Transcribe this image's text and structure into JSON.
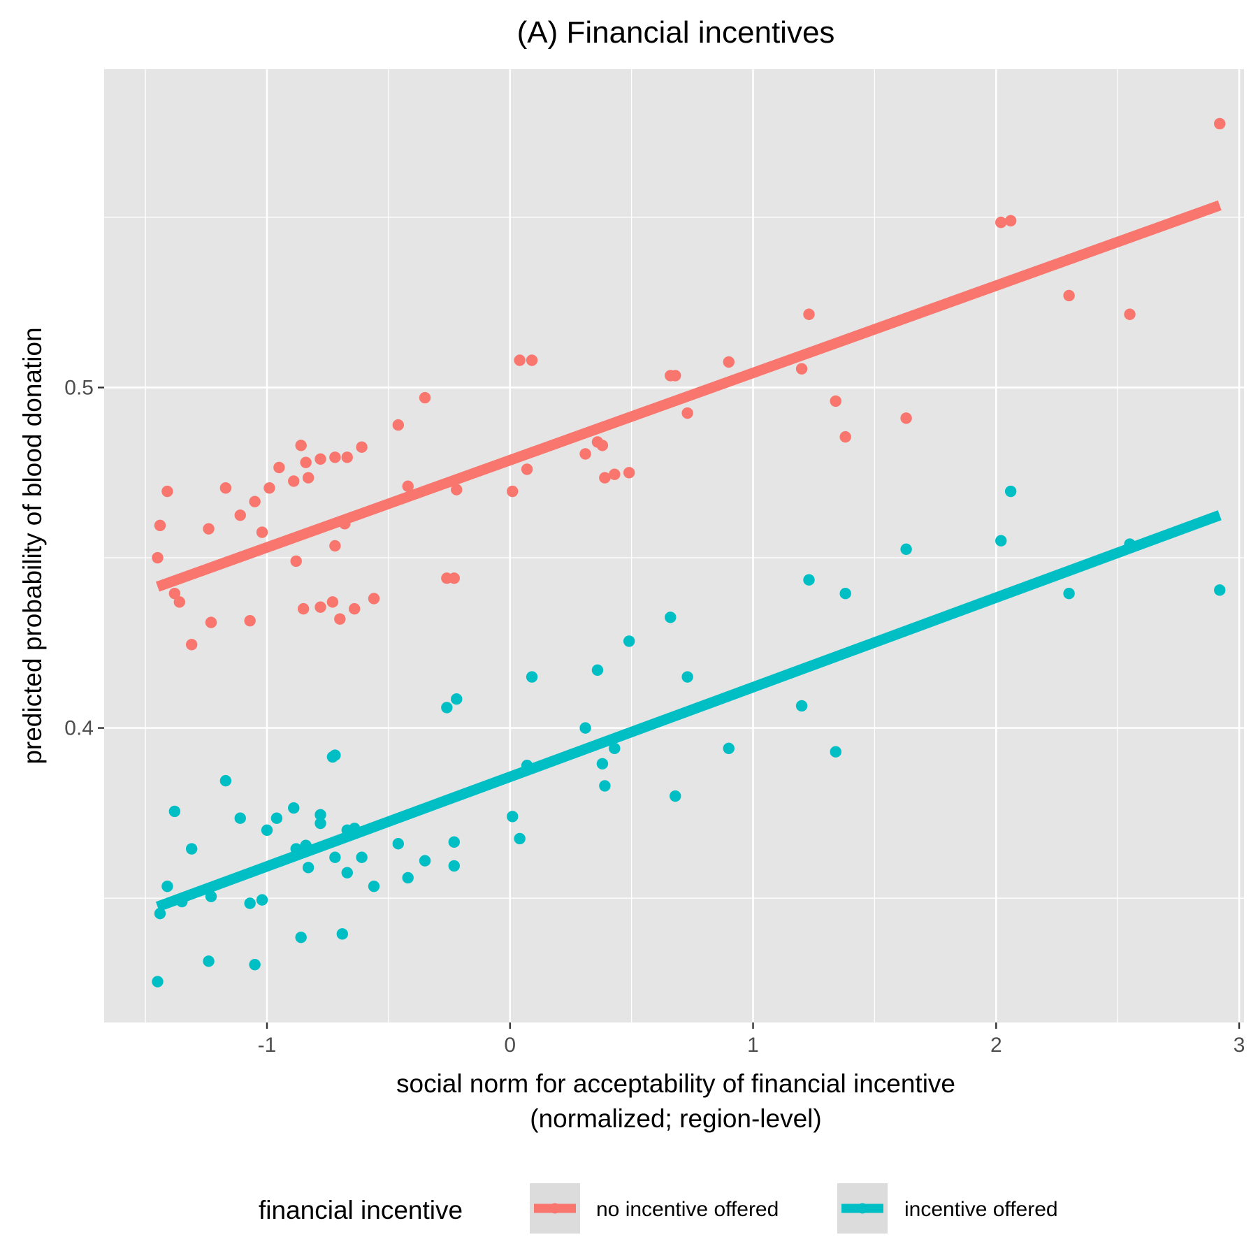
{
  "chart_data": {
    "type": "scatter",
    "title": "(A) Financial incentives",
    "xlabel_lines": [
      "social norm for acceptability of financial incentive",
      "(normalized; region-level)"
    ],
    "ylabel": "predicted probability of blood donation",
    "xlim": [
      -1.67,
      3.02
    ],
    "ylim": [
      0.3135,
      0.5935
    ],
    "x_ticks": [
      -1,
      0,
      1,
      2,
      3
    ],
    "x_tick_labels": [
      "-1",
      "0",
      "1",
      "2",
      "3"
    ],
    "y_ticks": [
      0.4,
      0.5
    ],
    "y_tick_labels": [
      "0.4",
      "0.5"
    ],
    "grid": true,
    "legend": {
      "title": "financial incentive",
      "position": "bottom",
      "entries": [
        "no incentive offered",
        "incentive offered"
      ]
    },
    "colors": {
      "panel_background": "#e5e5e5",
      "grid": "#ffffff",
      "no_incentive": "#f8766d",
      "incentive": "#00bfc4"
    },
    "series": [
      {
        "name": "no incentive offered",
        "color": "#f8766d",
        "fit_line": {
          "x": [
            -1.45,
            2.92
          ],
          "y": [
            0.4415,
            0.5535
          ]
        },
        "points": [
          [
            -1.45,
            0.45
          ],
          [
            -1.44,
            0.4595
          ],
          [
            -1.41,
            0.4695
          ],
          [
            -1.38,
            0.4395
          ],
          [
            -1.36,
            0.437
          ],
          [
            -1.31,
            0.4245
          ],
          [
            -1.24,
            0.4585
          ],
          [
            -1.23,
            0.431
          ],
          [
            -1.17,
            0.4705
          ],
          [
            -1.11,
            0.4625
          ],
          [
            -1.07,
            0.4315
          ],
          [
            -1.05,
            0.4665
          ],
          [
            -1.02,
            0.4575
          ],
          [
            -0.99,
            0.4705
          ],
          [
            -0.95,
            0.4765
          ],
          [
            -0.89,
            0.4725
          ],
          [
            -0.88,
            0.449
          ],
          [
            -0.86,
            0.483
          ],
          [
            -0.85,
            0.435
          ],
          [
            -0.84,
            0.478
          ],
          [
            -0.83,
            0.4735
          ],
          [
            -0.78,
            0.4355
          ],
          [
            -0.78,
            0.479
          ],
          [
            -0.73,
            0.437
          ],
          [
            -0.72,
            0.4795
          ],
          [
            -0.72,
            0.4535
          ],
          [
            -0.7,
            0.432
          ],
          [
            -0.68,
            0.46
          ],
          [
            -0.67,
            0.4795
          ],
          [
            -0.64,
            0.435
          ],
          [
            -0.61,
            0.4825
          ],
          [
            -0.56,
            0.438
          ],
          [
            -0.46,
            0.489
          ],
          [
            -0.42,
            0.471
          ],
          [
            -0.35,
            0.497
          ],
          [
            -0.26,
            0.444
          ],
          [
            -0.23,
            0.444
          ],
          [
            -0.22,
            0.47
          ],
          [
            0.01,
            0.4695
          ],
          [
            0.04,
            0.508
          ],
          [
            0.07,
            0.476
          ],
          [
            0.09,
            0.508
          ],
          [
            0.31,
            0.4805
          ],
          [
            0.36,
            0.484
          ],
          [
            0.38,
            0.483
          ],
          [
            0.39,
            0.4735
          ],
          [
            0.43,
            0.4745
          ],
          [
            0.49,
            0.475
          ],
          [
            0.66,
            0.5035
          ],
          [
            0.68,
            0.5035
          ],
          [
            0.73,
            0.4925
          ],
          [
            0.9,
            0.5075
          ],
          [
            1.2,
            0.5055
          ],
          [
            1.23,
            0.5215
          ],
          [
            1.34,
            0.496
          ],
          [
            1.38,
            0.4855
          ],
          [
            1.63,
            0.491
          ],
          [
            2.02,
            0.5485
          ],
          [
            2.06,
            0.549
          ],
          [
            2.3,
            0.527
          ],
          [
            2.55,
            0.5215
          ],
          [
            2.92,
            0.5775
          ]
        ]
      },
      {
        "name": "incentive offered",
        "color": "#00bfc4",
        "fit_line": {
          "x": [
            -1.45,
            2.92
          ],
          "y": [
            0.3475,
            0.4625
          ]
        },
        "points": [
          [
            -1.45,
            0.3255
          ],
          [
            -1.44,
            0.3455
          ],
          [
            -1.41,
            0.3535
          ],
          [
            -1.38,
            0.3755
          ],
          [
            -1.35,
            0.349
          ],
          [
            -1.31,
            0.3645
          ],
          [
            -1.24,
            0.3315
          ],
          [
            -1.23,
            0.3505
          ],
          [
            -1.17,
            0.3845
          ],
          [
            -1.11,
            0.3735
          ],
          [
            -1.07,
            0.3485
          ],
          [
            -1.05,
            0.3305
          ],
          [
            -1.02,
            0.3495
          ],
          [
            -1.0,
            0.37
          ],
          [
            -0.96,
            0.3735
          ],
          [
            -0.89,
            0.3765
          ],
          [
            -0.88,
            0.3645
          ],
          [
            -0.86,
            0.3385
          ],
          [
            -0.84,
            0.3655
          ],
          [
            -0.83,
            0.359
          ],
          [
            -0.78,
            0.3745
          ],
          [
            -0.78,
            0.372
          ],
          [
            -0.73,
            0.3915
          ],
          [
            -0.72,
            0.392
          ],
          [
            -0.72,
            0.362
          ],
          [
            -0.69,
            0.3395
          ],
          [
            -0.67,
            0.37
          ],
          [
            -0.67,
            0.3575
          ],
          [
            -0.64,
            0.3705
          ],
          [
            -0.61,
            0.362
          ],
          [
            -0.56,
            0.3535
          ],
          [
            -0.46,
            0.366
          ],
          [
            -0.42,
            0.356
          ],
          [
            -0.35,
            0.361
          ],
          [
            -0.26,
            0.406
          ],
          [
            -0.23,
            0.3665
          ],
          [
            -0.23,
            0.3595
          ],
          [
            -0.22,
            0.4085
          ],
          [
            0.01,
            0.374
          ],
          [
            0.04,
            0.3675
          ],
          [
            0.07,
            0.389
          ],
          [
            0.09,
            0.415
          ],
          [
            0.31,
            0.4
          ],
          [
            0.36,
            0.417
          ],
          [
            0.38,
            0.3895
          ],
          [
            0.39,
            0.383
          ],
          [
            0.43,
            0.394
          ],
          [
            0.49,
            0.4255
          ],
          [
            0.66,
            0.4325
          ],
          [
            0.68,
            0.38
          ],
          [
            0.73,
            0.415
          ],
          [
            0.9,
            0.394
          ],
          [
            1.2,
            0.4065
          ],
          [
            1.23,
            0.4435
          ],
          [
            1.34,
            0.393
          ],
          [
            1.38,
            0.4395
          ],
          [
            1.63,
            0.4525
          ],
          [
            2.02,
            0.455
          ],
          [
            2.06,
            0.4695
          ],
          [
            2.3,
            0.4395
          ],
          [
            2.55,
            0.454
          ],
          [
            2.92,
            0.4405
          ]
        ]
      }
    ]
  }
}
